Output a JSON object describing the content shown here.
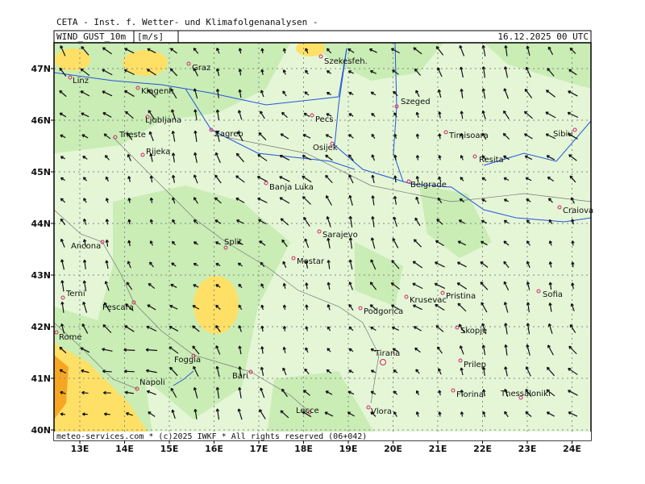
{
  "header": {
    "title": "CETA - Inst. f. Wetter- und Klimafolgenanalysen -",
    "variable": "WIND_GUST_10m",
    "units": "[m/s]",
    "valid_time": "16.12.2025 00 UTC"
  },
  "map": {
    "longitude_labels": [
      "13E",
      "14E",
      "15E",
      "16E",
      "17E",
      "18E",
      "19E",
      "20E",
      "21E",
      "22E",
      "23E",
      "24E"
    ],
    "latitude_labels": [
      "47N",
      "46N",
      "45N",
      "44N",
      "43N",
      "42N",
      "41N",
      "40N"
    ],
    "cities": [
      "Linz",
      "Graz",
      "Szekesfeh.",
      "Klagenf.",
      "Szeged",
      "Ljubljana",
      "Pecs",
      "Zagreb",
      "Timisoara",
      "Sibiu",
      "Trieste",
      "Osijek",
      "Rijeka",
      "Resita",
      "Belgrade",
      "Banja Luka",
      "Craiova",
      "Sarajevo",
      "Ancona",
      "Split",
      "Mostar",
      "Terni",
      "Pristina",
      "Sofia",
      "Krusevac",
      "Pescara",
      "Podgorica",
      "Rome",
      "Skopje",
      "Tirana",
      "Foggia",
      "Prilep",
      "Bari",
      "Napoli",
      "Florina",
      "Thessaloniki",
      "Lecce",
      "Vlora"
    ],
    "footer": "meteo-services.com * (c)2025 IWKF * All rights reserved (06+042)"
  }
}
